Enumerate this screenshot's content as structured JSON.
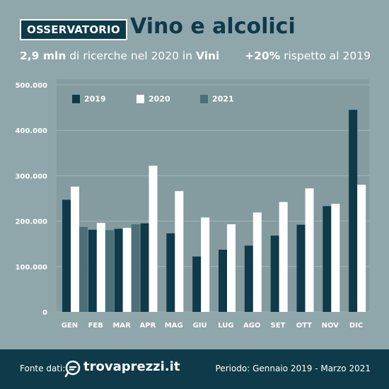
{
  "header": {
    "tag": "OSSERVATORIO",
    "title": "Vino e alcolici",
    "sub_left_bold1": "2,9 mln",
    "sub_left_mid": " di ricerche nel 2020 in ",
    "sub_left_bold2": "Vini",
    "sub_right_bold": "+20%",
    "sub_right_rest": " rispetto al 2019"
  },
  "footer": {
    "source_label": "Fonte dati:",
    "logo_text": "trovaprezzi.it",
    "logo_icon": "trovaprezzi-logo-icon",
    "period": "Periodo: Gennaio 2019 - Marzo 2021"
  },
  "colors": {
    "2019": "#0e3a4a",
    "2020": "#ffffff",
    "2021": "#4d6f78",
    "background": "#8fa6ab",
    "plot": "#849ba0"
  },
  "chart_data": {
    "type": "bar",
    "categories": [
      "GEN",
      "FEB",
      "MAR",
      "APR",
      "MAG",
      "GIU",
      "LUG",
      "AGO",
      "SET",
      "OTT",
      "NOV",
      "DIC"
    ],
    "series": [
      {
        "name": "2019",
        "values": [
          247000,
          181000,
          183000,
          195000,
          173000,
          122000,
          137000,
          146000,
          168000,
          192000,
          233000,
          445000
        ]
      },
      {
        "name": "2020",
        "values": [
          276000,
          196000,
          185000,
          322000,
          266000,
          208000,
          193000,
          219000,
          242000,
          272000,
          238000,
          280000
        ]
      },
      {
        "name": "2021",
        "values": [
          187000,
          180000,
          193000,
          null,
          null,
          null,
          null,
          null,
          null,
          null,
          null,
          null
        ]
      }
    ],
    "yticks": [
      "0",
      "100.000",
      "200.000",
      "300.000",
      "400.000",
      "500.000"
    ],
    "ylim": [
      0,
      500000
    ],
    "grid": true,
    "legend": "top-left"
  }
}
